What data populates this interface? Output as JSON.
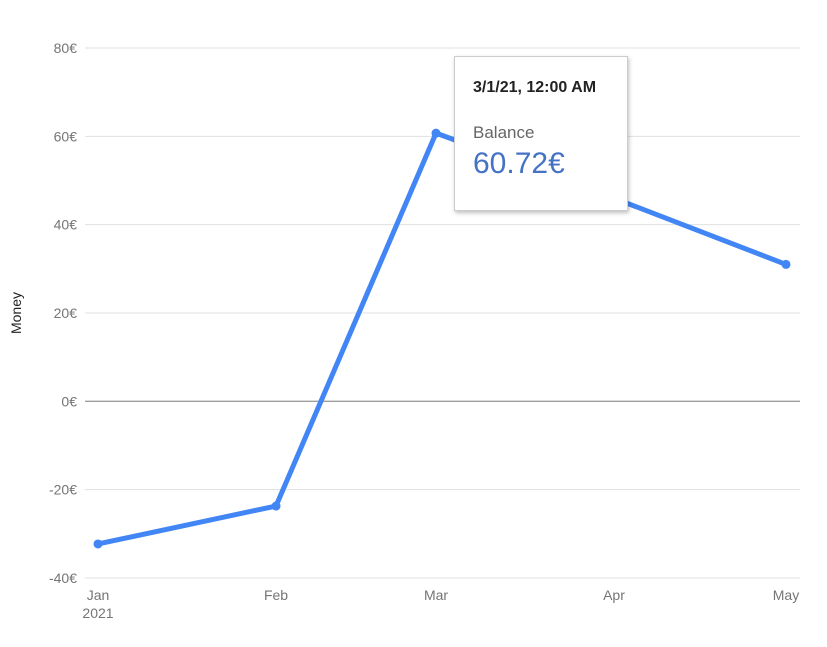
{
  "chart_data": {
    "type": "line",
    "ylabel": "Money",
    "x": [
      "Jan",
      "Feb",
      "Mar",
      "Apr",
      "May"
    ],
    "x_sublabels": [
      "2021",
      "",
      "",
      "",
      ""
    ],
    "series": [
      {
        "name": "Balance",
        "values": [
          -32.3,
          -23.7,
          60.72,
          46.0,
          31.0
        ],
        "color": "#4285f4"
      }
    ],
    "ylim": [
      -40,
      80
    ],
    "yticks": [
      80,
      60,
      40,
      20,
      0,
      -20,
      -40
    ],
    "ytick_labels": [
      "80€",
      "60€",
      "40€",
      "20€",
      "0€",
      "-20€",
      "-40€"
    ],
    "grid": true,
    "tooltip": {
      "title": "3/1/21, 12:00 AM",
      "series": "Balance",
      "value": "60.72€"
    }
  }
}
